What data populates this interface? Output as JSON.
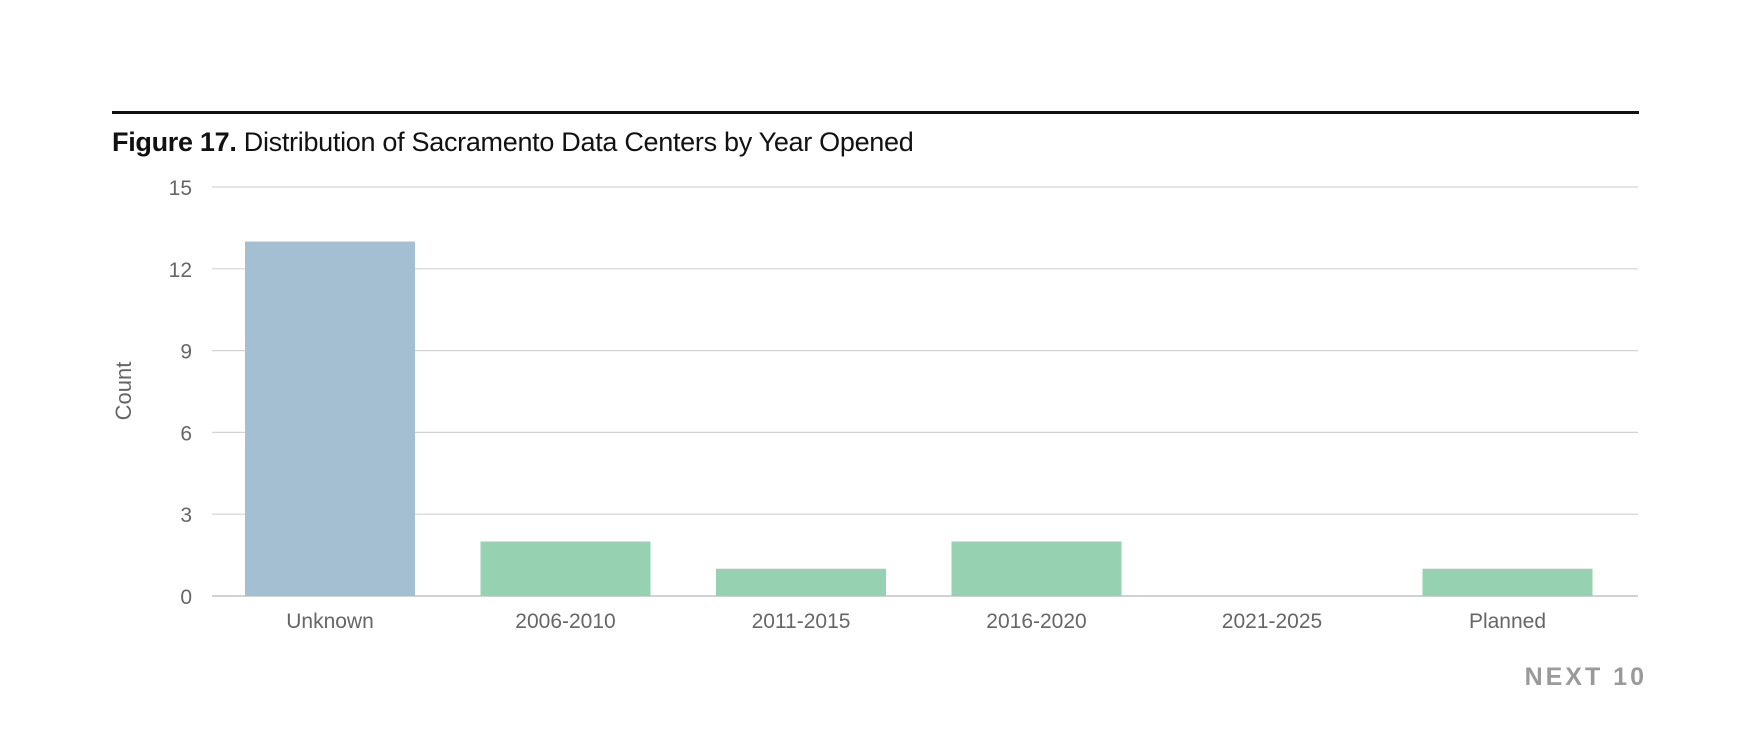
{
  "figure": {
    "number_label": "Figure 17.",
    "title_text": "Distribution of Sacramento Data Centers by Year Opened"
  },
  "brand": {
    "text": "NEXT 10"
  },
  "colors": {
    "highlight_bar": "#a4bfd2",
    "bar": "#96d1b1",
    "gridline": "#d3d3d3",
    "axis_text": "#666666",
    "title_rule": "#111111",
    "brand_text": "#9a9a9a"
  },
  "chart_data": {
    "type": "bar",
    "title": "Distribution of Sacramento Data Centers by Year Opened",
    "xlabel": "",
    "ylabel": "Count",
    "categories": [
      "Unknown",
      "2006-2010",
      "2011-2015",
      "2016-2020",
      "2021-2025",
      "Planned"
    ],
    "values": [
      13,
      2,
      1,
      2,
      0,
      1
    ],
    "highlight_categories": [
      "Unknown"
    ],
    "ylim": [
      0,
      15
    ],
    "yticks": [
      0,
      3,
      6,
      9,
      12,
      15
    ],
    "grid": true,
    "legend": "none"
  }
}
